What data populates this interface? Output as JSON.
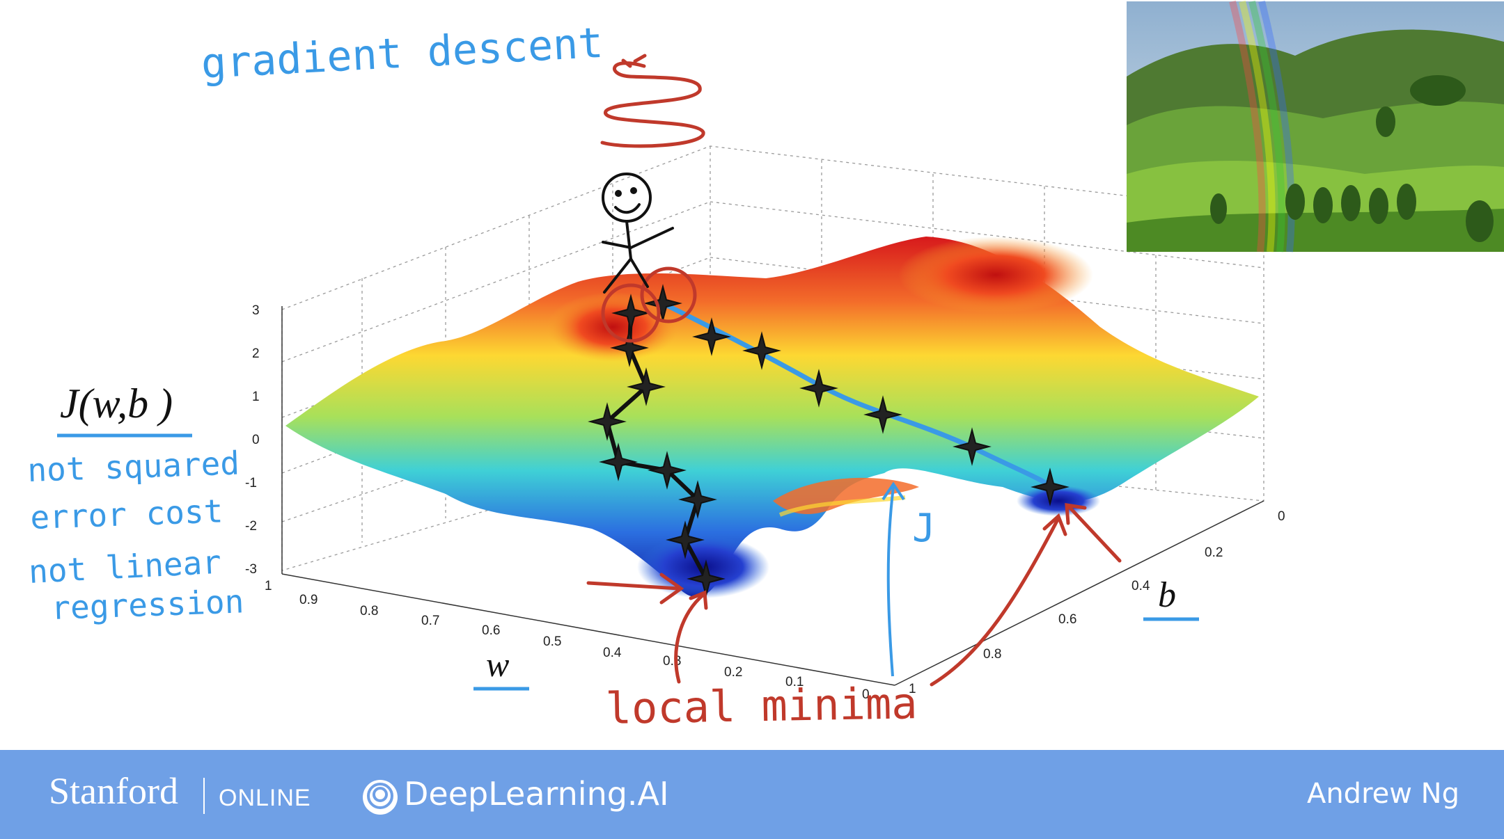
{
  "title": "gradient descent",
  "cost_label": "J(w,b )",
  "notes": {
    "line1": "not squared",
    "line2": "error cost",
    "line3": "not linear",
    "line4": "regression"
  },
  "axes": {
    "w_label": "w",
    "b_label": "b",
    "j_label": "J",
    "z_ticks": [
      "3",
      "2",
      "1",
      "0",
      "-1",
      "-2",
      "-3"
    ],
    "w_ticks": [
      "1",
      "0.9",
      "0.8",
      "0.7",
      "0.6",
      "0.5",
      "0.4",
      "0.3",
      "0.2",
      "0.1",
      "0"
    ],
    "b_ticks": [
      "0",
      "0.2",
      "0.4",
      "0.6",
      "0.8",
      "1"
    ]
  },
  "annotation": "local minima",
  "footer": {
    "stanford": "Stanford",
    "online": "ONLINE",
    "brand": "DeepLearning.AI",
    "author": "Andrew Ng"
  },
  "colors": {
    "ink_blue": "#3a9ae6",
    "ink_red": "#c0392b",
    "footer_bg": "#6fa0e6"
  },
  "icons": [
    "stick-figure-icon",
    "landscape-photo",
    "deeplearning-logo-icon"
  ]
}
